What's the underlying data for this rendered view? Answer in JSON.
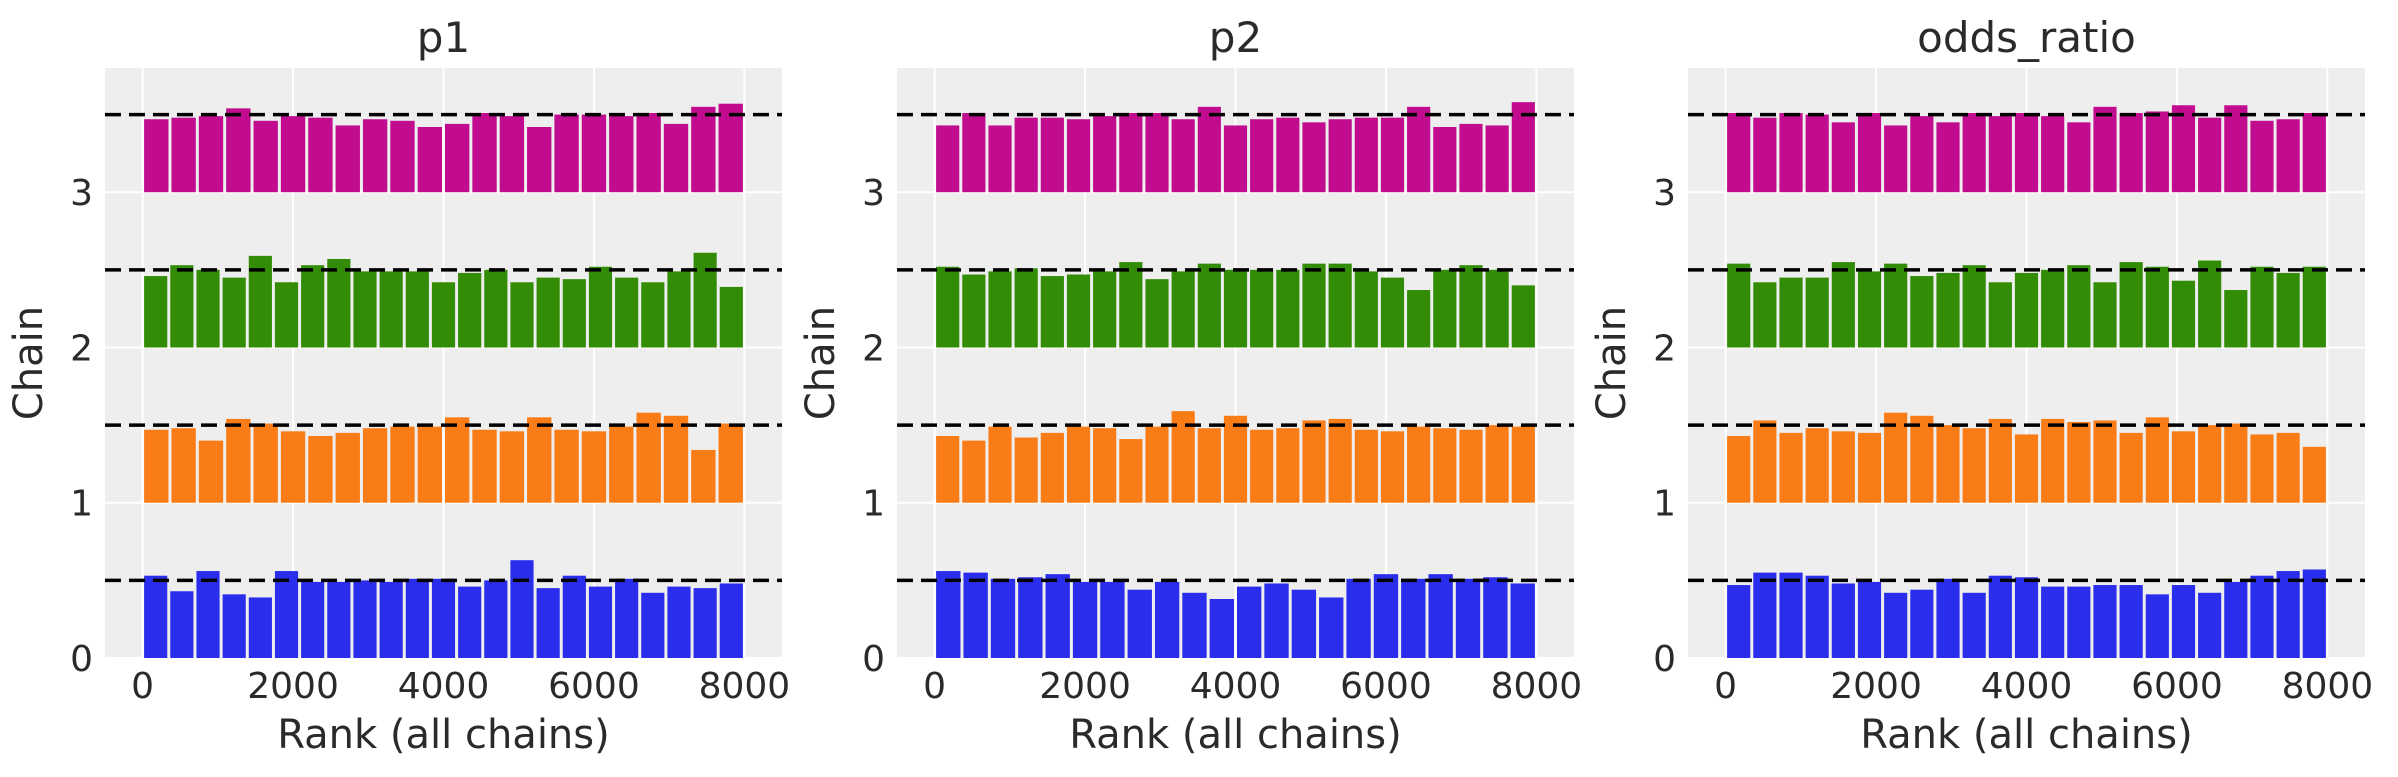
{
  "figure": {
    "background": "#ffffff",
    "panel_background": "#eeeeee",
    "grid_color": "#ffffff"
  },
  "chain_colors": [
    "#2a2eec",
    "#fa7c17",
    "#328c06",
    "#c10c90"
  ],
  "chart_data": [
    {
      "type": "bar",
      "title": "p1",
      "xlabel": "Rank (all chains)",
      "ylabel": "Chain",
      "xlim": [
        -500,
        8500
      ],
      "ylim": [
        0,
        3.8
      ],
      "xticks": [
        0,
        2000,
        4000,
        6000,
        8000
      ],
      "yticks": [
        0,
        1,
        2,
        3
      ],
      "bin_range": [
        0,
        8000
      ],
      "reference_level": 0.5,
      "series": [
        {
          "chain": 0,
          "values": [
            0.53,
            0.43,
            0.56,
            0.41,
            0.39,
            0.56,
            0.49,
            0.49,
            0.5,
            0.49,
            0.51,
            0.51,
            0.46,
            0.5,
            0.63,
            0.45,
            0.53,
            0.46,
            0.51,
            0.42,
            0.46,
            0.45,
            0.48
          ]
        },
        {
          "chain": 1,
          "values": [
            0.47,
            0.48,
            0.4,
            0.54,
            0.51,
            0.46,
            0.43,
            0.45,
            0.48,
            0.49,
            0.49,
            0.55,
            0.47,
            0.46,
            0.55,
            0.47,
            0.46,
            0.49,
            0.58,
            0.56,
            0.34,
            0.51
          ]
        },
        {
          "chain": 2,
          "values": [
            0.46,
            0.53,
            0.5,
            0.45,
            0.59,
            0.42,
            0.53,
            0.57,
            0.49,
            0.49,
            0.49,
            0.42,
            0.48,
            0.5,
            0.42,
            0.45,
            0.44,
            0.52,
            0.45,
            0.42,
            0.49,
            0.61,
            0.39
          ]
        },
        {
          "chain": 3,
          "values": [
            0.47,
            0.48,
            0.49,
            0.54,
            0.46,
            0.49,
            0.48,
            0.43,
            0.47,
            0.46,
            0.42,
            0.44,
            0.51,
            0.49,
            0.42,
            0.5,
            0.5,
            0.49,
            0.51,
            0.44,
            0.55,
            0.57
          ]
        }
      ]
    },
    {
      "type": "bar",
      "title": "p2",
      "xlabel": "Rank (all chains)",
      "ylabel": "Chain",
      "xlim": [
        -500,
        8500
      ],
      "ylim": [
        0,
        3.8
      ],
      "xticks": [
        0,
        2000,
        4000,
        6000,
        8000
      ],
      "yticks": [
        0,
        1,
        2,
        3
      ],
      "bin_range": [
        0,
        8000
      ],
      "reference_level": 0.5,
      "series": [
        {
          "chain": 0,
          "values": [
            0.56,
            0.55,
            0.51,
            0.52,
            0.54,
            0.49,
            0.49,
            0.44,
            0.49,
            0.42,
            0.38,
            0.46,
            0.48,
            0.44,
            0.39,
            0.51,
            0.54,
            0.51,
            0.54,
            0.51,
            0.52,
            0.48
          ]
        },
        {
          "chain": 1,
          "values": [
            0.43,
            0.4,
            0.49,
            0.42,
            0.45,
            0.49,
            0.48,
            0.41,
            0.49,
            0.59,
            0.48,
            0.56,
            0.47,
            0.48,
            0.53,
            0.54,
            0.47,
            0.46,
            0.49,
            0.48,
            0.47,
            0.5,
            0.49
          ]
        },
        {
          "chain": 2,
          "values": [
            0.52,
            0.47,
            0.49,
            0.51,
            0.46,
            0.47,
            0.49,
            0.55,
            0.44,
            0.49,
            0.54,
            0.5,
            0.5,
            0.5,
            0.54,
            0.54,
            0.49,
            0.45,
            0.37,
            0.5,
            0.53,
            0.5,
            0.4
          ]
        },
        {
          "chain": 3,
          "values": [
            0.43,
            0.51,
            0.43,
            0.48,
            0.48,
            0.47,
            0.49,
            0.51,
            0.51,
            0.47,
            0.55,
            0.43,
            0.47,
            0.48,
            0.45,
            0.47,
            0.48,
            0.48,
            0.55,
            0.42,
            0.44,
            0.43,
            0.58
          ]
        }
      ]
    },
    {
      "type": "bar",
      "title": "odds_ratio",
      "xlabel": "Rank (all chains)",
      "ylabel": "Chain",
      "xlim": [
        -500,
        8500
      ],
      "ylim": [
        0,
        3.8
      ],
      "xticks": [
        0,
        2000,
        4000,
        6000,
        8000
      ],
      "yticks": [
        0,
        1,
        2,
        3
      ],
      "bin_range": [
        0,
        8000
      ],
      "reference_level": 0.5,
      "series": [
        {
          "chain": 0,
          "values": [
            0.47,
            0.55,
            0.55,
            0.53,
            0.48,
            0.49,
            0.42,
            0.44,
            0.51,
            0.42,
            0.53,
            0.52,
            0.46,
            0.46,
            0.47,
            0.47,
            0.41,
            0.47,
            0.42,
            0.49,
            0.53,
            0.56,
            0.57
          ]
        },
        {
          "chain": 1,
          "values": [
            0.43,
            0.53,
            0.45,
            0.48,
            0.46,
            0.45,
            0.58,
            0.56,
            0.5,
            0.48,
            0.54,
            0.44,
            0.54,
            0.52,
            0.53,
            0.45,
            0.55,
            0.46,
            0.5,
            0.51,
            0.44,
            0.45,
            0.36
          ]
        },
        {
          "chain": 2,
          "values": [
            0.54,
            0.42,
            0.45,
            0.45,
            0.55,
            0.49,
            0.54,
            0.46,
            0.48,
            0.53,
            0.42,
            0.48,
            0.5,
            0.53,
            0.42,
            0.55,
            0.52,
            0.43,
            0.56,
            0.37,
            0.52,
            0.48,
            0.52
          ]
        },
        {
          "chain": 3,
          "values": [
            0.51,
            0.48,
            0.51,
            0.5,
            0.45,
            0.51,
            0.43,
            0.49,
            0.45,
            0.51,
            0.49,
            0.51,
            0.49,
            0.45,
            0.55,
            0.51,
            0.52,
            0.56,
            0.48,
            0.56,
            0.46,
            0.47,
            0.51
          ]
        }
      ]
    }
  ]
}
